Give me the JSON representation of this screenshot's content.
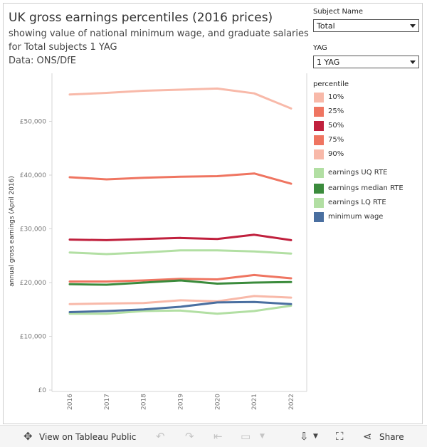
{
  "header": {
    "title": "UK gross earnings percentiles (2016 prices)",
    "subtitle_lines": [
      "showing value of national minimum wage, and graduate salaries",
      "for Total subjects 1 YAG",
      "Data: ONS/DfE"
    ]
  },
  "filters": {
    "subject_label": "Subject Name",
    "subject_value": "Total",
    "yag_label": "YAG",
    "yag_value": "1 YAG"
  },
  "legend": {
    "title": "percentile",
    "items": [
      {
        "label": "10%",
        "color": "#f8b9a9"
      },
      {
        "label": "25%",
        "color": "#ef7561"
      },
      {
        "label": "50%",
        "color": "#c0203d"
      },
      {
        "label": "75%",
        "color": "#ef7561"
      },
      {
        "label": "90%",
        "color": "#f8b9a9"
      },
      {
        "label": "earnings UQ RTE",
        "color": "#b2dfa3"
      },
      {
        "label": "earnings median RTE",
        "color": "#3b8b3c"
      },
      {
        "label": "earnings LQ RTE",
        "color": "#b2dfa3"
      },
      {
        "label": "minimum wage",
        "color": "#4a6fa0"
      }
    ]
  },
  "chart_data": {
    "type": "line",
    "ylabel": "annual gross earnings (April 2016)",
    "xlabel": "",
    "x": [
      "2016",
      "2017",
      "2018",
      "2019",
      "2020",
      "2021",
      "2022"
    ],
    "ylim": [
      0,
      59000
    ],
    "yticks": [
      {
        "value": 0,
        "label": "£0"
      },
      {
        "value": 10000,
        "label": "£10,000"
      },
      {
        "value": 20000,
        "label": "£20,000"
      },
      {
        "value": 30000,
        "label": "£30,000"
      },
      {
        "value": 40000,
        "label": "£40,000"
      },
      {
        "value": 50000,
        "label": "£50,000"
      }
    ],
    "grid": false,
    "legend_position": "right",
    "series": [
      {
        "name": "90%",
        "color": "#f8b9a9",
        "values": [
          55000,
          55300,
          55700,
          55900,
          56100,
          55200,
          52400
        ]
      },
      {
        "name": "75%",
        "color": "#ef7561",
        "values": [
          39600,
          39200,
          39500,
          39700,
          39800,
          40300,
          38400
        ]
      },
      {
        "name": "earnings UQ RTE",
        "color": "#b2dfa3",
        "values": [
          25600,
          25300,
          25600,
          26000,
          26000,
          25800,
          25400
        ]
      },
      {
        "name": "50%",
        "color": "#c0203d",
        "values": [
          28000,
          27900,
          28100,
          28300,
          28100,
          28900,
          27900
        ]
      },
      {
        "name": "25%",
        "color": "#ef7561",
        "values": [
          20200,
          20200,
          20400,
          20700,
          20600,
          21400,
          20800
        ]
      },
      {
        "name": "earnings median RTE",
        "color": "#3b8b3c",
        "values": [
          19700,
          19600,
          20000,
          20400,
          19800,
          20000,
          20100
        ]
      },
      {
        "name": "10%",
        "color": "#f8b9a9",
        "values": [
          16000,
          16100,
          16200,
          16700,
          16500,
          17500,
          17200
        ]
      },
      {
        "name": "earnings LQ RTE",
        "color": "#b2dfa3",
        "values": [
          14200,
          14200,
          14700,
          14800,
          14200,
          14700,
          15700
        ]
      },
      {
        "name": "minimum wage",
        "color": "#4a6fa0",
        "values": [
          14500,
          14700,
          15000,
          15500,
          16300,
          16400,
          16000
        ]
      }
    ]
  },
  "toolbar": {
    "view_label": "View on Tableau Public",
    "share_label": "Share"
  }
}
